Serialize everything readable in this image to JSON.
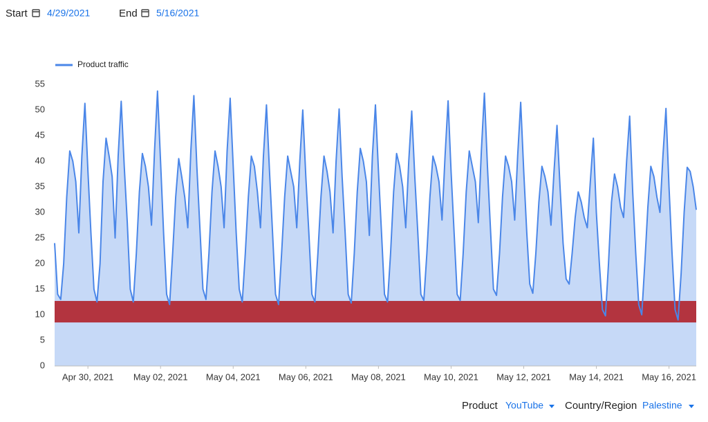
{
  "controls": {
    "start_label": "Start",
    "start_value": "4/29/2021",
    "end_label": "End",
    "end_value": "5/16/2021",
    "product_label": "Product",
    "product_value": "YouTube",
    "region_label": "Country/Region",
    "region_value": "Palestine"
  },
  "chart_data": {
    "type": "area",
    "x": [
      "2021-04-29T02:00",
      "2021-04-29T04:00",
      "2021-04-29T06:00",
      "2021-04-29T08:00",
      "2021-04-29T10:00",
      "2021-04-29T12:00",
      "2021-04-29T14:00",
      "2021-04-29T16:00",
      "2021-04-29T18:00",
      "2021-04-29T20:00",
      "2021-04-29T22:00",
      "2021-04-30T00:00",
      "2021-04-30T02:00",
      "2021-04-30T04:00",
      "2021-04-30T06:00",
      "2021-04-30T08:00",
      "2021-04-30T10:00",
      "2021-04-30T12:00",
      "2021-04-30T14:00",
      "2021-04-30T16:00",
      "2021-04-30T18:00",
      "2021-04-30T20:00",
      "2021-04-30T22:00",
      "2021-05-01T00:00",
      "2021-05-01T02:00",
      "2021-05-01T04:00",
      "2021-05-01T06:00",
      "2021-05-01T08:00",
      "2021-05-01T10:00",
      "2021-05-01T12:00",
      "2021-05-01T14:00",
      "2021-05-01T16:00",
      "2021-05-01T18:00",
      "2021-05-01T20:00",
      "2021-05-01T22:00",
      "2021-05-02T00:00",
      "2021-05-02T02:00",
      "2021-05-02T04:00",
      "2021-05-02T06:00",
      "2021-05-02T08:00",
      "2021-05-02T10:00",
      "2021-05-02T12:00",
      "2021-05-02T14:00",
      "2021-05-02T16:00",
      "2021-05-02T18:00",
      "2021-05-02T20:00",
      "2021-05-02T22:00",
      "2021-05-03T00:00",
      "2021-05-03T02:00",
      "2021-05-03T04:00",
      "2021-05-03T06:00",
      "2021-05-03T08:00",
      "2021-05-03T10:00",
      "2021-05-03T12:00",
      "2021-05-03T14:00",
      "2021-05-03T16:00",
      "2021-05-03T18:00",
      "2021-05-03T20:00",
      "2021-05-03T22:00",
      "2021-05-04T00:00",
      "2021-05-04T02:00",
      "2021-05-04T04:00",
      "2021-05-04T06:00",
      "2021-05-04T08:00",
      "2021-05-04T10:00",
      "2021-05-04T12:00",
      "2021-05-04T14:00",
      "2021-05-04T16:00",
      "2021-05-04T18:00",
      "2021-05-04T20:00",
      "2021-05-04T22:00",
      "2021-05-05T00:00",
      "2021-05-05T02:00",
      "2021-05-05T04:00",
      "2021-05-05T06:00",
      "2021-05-05T08:00",
      "2021-05-05T10:00",
      "2021-05-05T12:00",
      "2021-05-05T14:00",
      "2021-05-05T16:00",
      "2021-05-05T18:00",
      "2021-05-05T20:00",
      "2021-05-05T22:00",
      "2021-05-06T00:00",
      "2021-05-06T02:00",
      "2021-05-06T04:00",
      "2021-05-06T06:00",
      "2021-05-06T08:00",
      "2021-05-06T10:00",
      "2021-05-06T12:00",
      "2021-05-06T14:00",
      "2021-05-06T16:00",
      "2021-05-06T18:00",
      "2021-05-06T20:00",
      "2021-05-06T22:00",
      "2021-05-07T00:00",
      "2021-05-07T02:00",
      "2021-05-07T04:00",
      "2021-05-07T06:00",
      "2021-05-07T08:00",
      "2021-05-07T10:00",
      "2021-05-07T12:00",
      "2021-05-07T14:00",
      "2021-05-07T16:00",
      "2021-05-07T18:00",
      "2021-05-07T20:00",
      "2021-05-07T22:00",
      "2021-05-08T00:00",
      "2021-05-08T02:00",
      "2021-05-08T04:00",
      "2021-05-08T06:00",
      "2021-05-08T08:00",
      "2021-05-08T10:00",
      "2021-05-08T12:00",
      "2021-05-08T14:00",
      "2021-05-08T16:00",
      "2021-05-08T18:00",
      "2021-05-08T20:00",
      "2021-05-08T22:00",
      "2021-05-09T00:00",
      "2021-05-09T02:00",
      "2021-05-09T04:00",
      "2021-05-09T06:00",
      "2021-05-09T08:00",
      "2021-05-09T10:00",
      "2021-05-09T12:00",
      "2021-05-09T14:00",
      "2021-05-09T16:00",
      "2021-05-09T18:00",
      "2021-05-09T20:00",
      "2021-05-09T22:00",
      "2021-05-10T00:00",
      "2021-05-10T02:00",
      "2021-05-10T04:00",
      "2021-05-10T06:00",
      "2021-05-10T08:00",
      "2021-05-10T10:00",
      "2021-05-10T12:00",
      "2021-05-10T14:00",
      "2021-05-10T16:00",
      "2021-05-10T18:00",
      "2021-05-10T20:00",
      "2021-05-10T22:00",
      "2021-05-11T00:00",
      "2021-05-11T02:00",
      "2021-05-11T04:00",
      "2021-05-11T06:00",
      "2021-05-11T08:00",
      "2021-05-11T10:00",
      "2021-05-11T12:00",
      "2021-05-11T14:00",
      "2021-05-11T16:00",
      "2021-05-11T18:00",
      "2021-05-11T20:00",
      "2021-05-11T22:00",
      "2021-05-12T00:00",
      "2021-05-12T02:00",
      "2021-05-12T04:00",
      "2021-05-12T06:00",
      "2021-05-12T08:00",
      "2021-05-12T10:00",
      "2021-05-12T12:00",
      "2021-05-12T14:00",
      "2021-05-12T16:00",
      "2021-05-12T18:00",
      "2021-05-12T20:00",
      "2021-05-12T22:00",
      "2021-05-13T00:00",
      "2021-05-13T02:00",
      "2021-05-13T04:00",
      "2021-05-13T06:00",
      "2021-05-13T08:00",
      "2021-05-13T10:00",
      "2021-05-13T12:00",
      "2021-05-13T14:00",
      "2021-05-13T16:00",
      "2021-05-13T18:00",
      "2021-05-13T20:00",
      "2021-05-13T22:00",
      "2021-05-14T00:00",
      "2021-05-14T02:00",
      "2021-05-14T04:00",
      "2021-05-14T06:00",
      "2021-05-14T08:00",
      "2021-05-14T10:00",
      "2021-05-14T12:00",
      "2021-05-14T14:00",
      "2021-05-14T16:00",
      "2021-05-14T18:00",
      "2021-05-14T20:00",
      "2021-05-14T22:00",
      "2021-05-15T00:00",
      "2021-05-15T02:00",
      "2021-05-15T04:00",
      "2021-05-15T06:00",
      "2021-05-15T08:00",
      "2021-05-15T10:00",
      "2021-05-15T12:00",
      "2021-05-15T14:00",
      "2021-05-15T16:00",
      "2021-05-15T18:00",
      "2021-05-15T20:00",
      "2021-05-15T22:00",
      "2021-05-16T00:00",
      "2021-05-16T02:00",
      "2021-05-16T04:00",
      "2021-05-16T06:00",
      "2021-05-16T08:00",
      "2021-05-16T10:00",
      "2021-05-16T12:00",
      "2021-05-16T14:00",
      "2021-05-16T16:00",
      "2021-05-16T18:00"
    ],
    "series": [
      {
        "name": "Product traffic",
        "color": "#4a86e8",
        "fill": "#c6d9f7",
        "values": [
          24,
          14,
          13,
          20,
          33,
          42,
          40,
          36,
          26,
          41,
          51.3,
          38,
          26,
          15,
          12.5,
          20,
          36,
          44.5,
          41,
          37,
          25,
          41,
          51.7,
          39,
          28,
          15,
          12.5,
          22,
          34,
          41.5,
          39,
          35,
          27.5,
          42,
          53.7,
          40,
          26,
          14,
          12,
          22,
          33,
          40.5,
          37,
          33,
          27,
          42,
          52.8,
          39,
          27,
          15,
          13,
          22,
          34,
          42,
          39,
          35,
          27,
          42,
          52.3,
          39,
          26,
          15,
          12.5,
          22,
          33,
          41,
          39,
          34,
          27,
          41,
          51,
          38,
          26,
          14,
          12,
          22,
          33,
          41,
          38,
          35,
          27,
          40,
          50,
          37,
          26,
          14,
          12.5,
          22,
          33,
          41,
          38,
          34,
          26,
          40,
          50.2,
          37,
          26,
          14,
          12.3,
          22,
          34,
          42.5,
          40,
          36,
          25.5,
          41,
          51,
          38,
          26,
          14,
          12.5,
          22,
          34,
          41.5,
          39,
          35,
          27,
          40,
          49.8,
          37,
          26,
          14,
          12.8,
          22,
          33,
          41,
          39,
          36,
          28.5,
          41,
          51.8,
          38,
          26,
          14,
          12.8,
          22,
          34,
          42,
          39,
          36,
          28,
          42,
          53.3,
          39,
          27,
          15,
          13.8,
          22,
          33,
          41,
          39,
          36,
          28.5,
          41,
          51.5,
          38,
          26,
          16,
          14.2,
          22,
          32,
          39,
          37,
          34,
          27.5,
          38,
          47,
          35,
          24,
          17,
          16,
          22,
          29,
          34,
          32,
          29,
          27,
          36,
          44.5,
          30,
          20,
          11,
          9.8,
          20,
          32,
          37.5,
          35,
          31,
          29,
          40,
          48.8,
          34,
          22,
          12,
          10,
          20,
          31,
          39,
          37,
          33,
          30,
          41,
          50.3,
          35,
          22,
          11,
          9,
          18,
          30,
          38.8,
          38,
          35,
          30.5
        ]
      }
    ],
    "band": {
      "from": 8.5,
      "to": 12.7,
      "color": "#b3343f"
    },
    "xlim": [
      "2021-04-29T02:00",
      "2021-05-16T18:00"
    ],
    "xticks": [
      {
        "value": "2021-04-30T00:00",
        "label": "Apr 30, 2021"
      },
      {
        "value": "2021-05-02T00:00",
        "label": "May 02, 2021"
      },
      {
        "value": "2021-05-04T00:00",
        "label": "May 04, 2021"
      },
      {
        "value": "2021-05-06T00:00",
        "label": "May 06, 2021"
      },
      {
        "value": "2021-05-08T00:00",
        "label": "May 08, 2021"
      },
      {
        "value": "2021-05-10T00:00",
        "label": "May 10, 2021"
      },
      {
        "value": "2021-05-12T00:00",
        "label": "May 12, 2021"
      },
      {
        "value": "2021-05-14T00:00",
        "label": "May 14, 2021"
      },
      {
        "value": "2021-05-16T00:00",
        "label": "May 16, 2021"
      }
    ],
    "ylim": [
      0,
      55
    ],
    "yticks": [
      0,
      5,
      10,
      15,
      20,
      25,
      30,
      35,
      40,
      45,
      50,
      55
    ],
    "legend": "top-left"
  }
}
